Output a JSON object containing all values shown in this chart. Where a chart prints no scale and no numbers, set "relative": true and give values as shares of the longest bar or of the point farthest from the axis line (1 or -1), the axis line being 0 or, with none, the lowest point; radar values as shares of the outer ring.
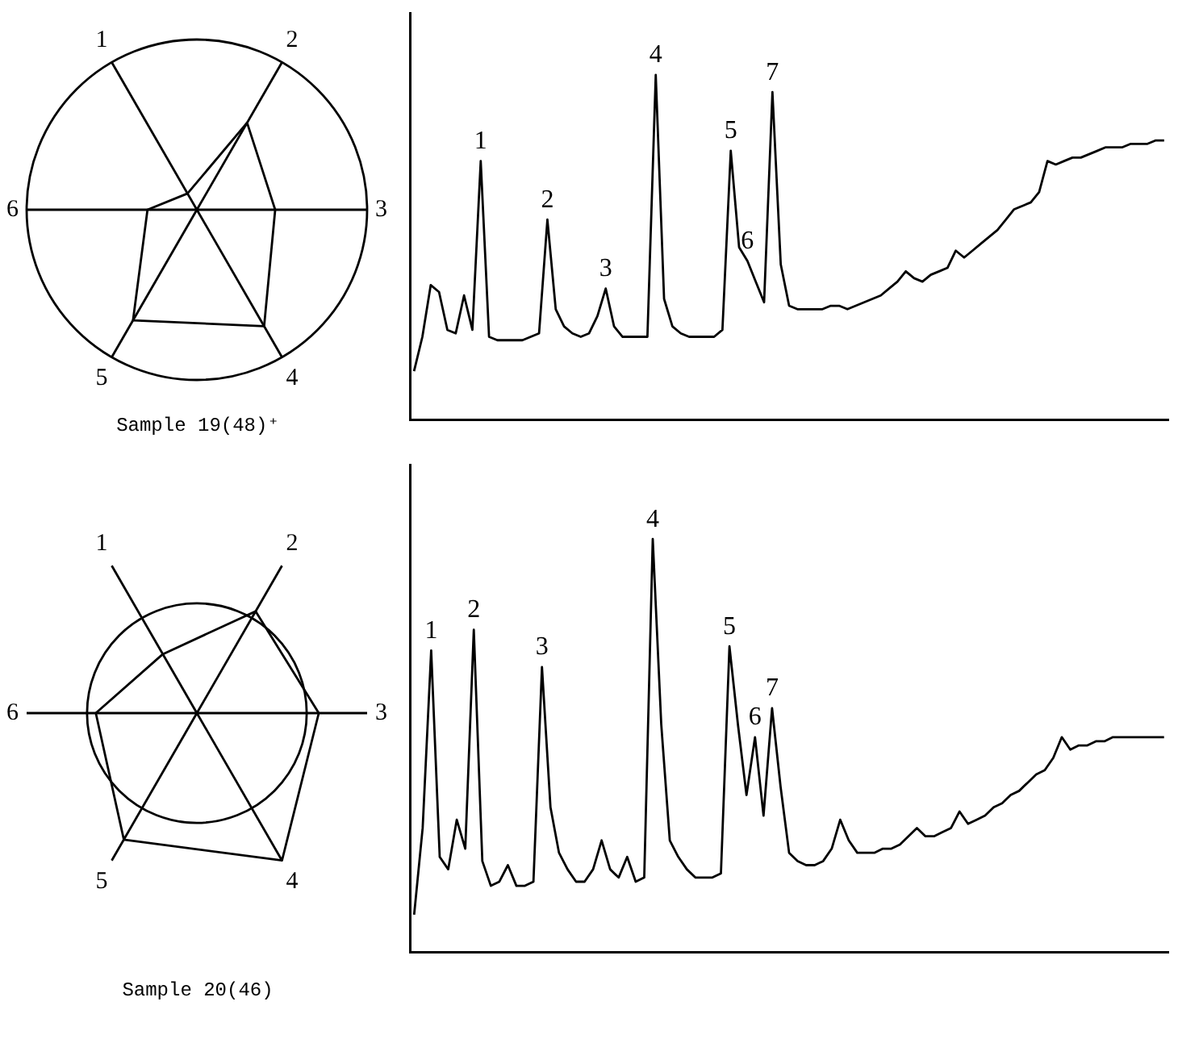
{
  "chart_data": [
    {
      "type": "radar",
      "title": "Sample 19(48)⁺",
      "categories": [
        "1",
        "2",
        "3",
        "4",
        "5",
        "6"
      ],
      "relative": true,
      "grid": true,
      "series": [
        {
          "color": "#000000",
          "values": [
            0.11,
            0.59,
            0.46,
            0.79,
            0.75,
            0.29
          ]
        }
      ]
    },
    {
      "type": "line",
      "relative": true,
      "tick_labels": false,
      "categories": [
        null,
        null,
        null,
        null,
        null,
        null,
        null,
        null,
        null,
        null,
        null,
        null,
        null,
        null,
        null,
        null,
        null,
        null,
        null,
        null,
        null,
        null,
        null,
        null,
        null,
        null,
        null,
        null,
        null,
        null,
        null,
        null,
        null,
        null,
        null,
        null,
        null,
        null,
        null,
        null,
        null,
        null,
        null,
        null,
        null,
        null,
        null,
        null,
        null,
        null,
        null,
        null,
        null,
        null,
        null,
        null,
        null,
        null,
        null,
        null,
        null,
        null,
        null,
        null,
        null,
        null,
        null,
        null,
        null,
        null,
        null,
        null,
        null,
        null,
        null,
        null,
        null,
        null,
        null,
        null,
        null,
        null,
        null,
        null,
        null,
        null,
        null,
        null,
        null,
        null,
        null
      ],
      "series": [
        {
          "color": "#000000",
          "values": [
            0.14,
            0.24,
            0.39,
            0.37,
            0.26,
            0.25,
            0.36,
            0.26,
            0.75,
            0.24,
            0.23,
            0.23,
            0.23,
            0.23,
            0.24,
            0.25,
            0.58,
            0.32,
            0.27,
            0.25,
            0.24,
            0.25,
            0.3,
            0.38,
            0.27,
            0.24,
            0.24,
            0.24,
            0.24,
            1.0,
            0.35,
            0.27,
            0.25,
            0.24,
            0.24,
            0.24,
            0.24,
            0.26,
            0.78,
            0.5,
            0.46,
            0.4,
            0.34,
            0.95,
            0.45,
            0.33,
            0.32,
            0.32,
            0.32,
            0.32,
            0.33,
            0.33,
            0.32,
            0.33,
            0.34,
            0.35,
            0.36,
            0.38,
            0.4,
            0.43,
            0.41,
            0.4,
            0.42,
            0.43,
            0.44,
            0.49,
            0.47,
            0.49,
            0.51,
            0.53,
            0.55,
            0.58,
            0.61,
            0.62,
            0.63,
            0.66,
            0.75,
            0.74,
            0.75,
            0.76,
            0.76,
            0.77,
            0.78,
            0.79,
            0.79,
            0.79,
            0.8,
            0.8,
            0.8,
            0.81,
            0.81
          ]
        }
      ],
      "annotations": [
        {
          "text": "1",
          "y": 0.75
        },
        {
          "text": "2",
          "y": 0.58
        },
        {
          "text": "3",
          "y": 0.38
        },
        {
          "text": "4",
          "y": 1.0
        },
        {
          "text": "5",
          "y": 0.78
        },
        {
          "text": "6",
          "y": 0.46
        },
        {
          "text": "7",
          "y": 0.95
        }
      ]
    },
    {
      "type": "radar",
      "title": "Sample 20(46)",
      "categories": [
        "1",
        "2",
        "3",
        "4",
        "5",
        "6"
      ],
      "relative": true,
      "grid": true,
      "series": [
        {
          "color": "#000000",
          "values": [
            0.62,
            1.07,
            1.11,
            1.55,
            1.33,
            0.92
          ]
        }
      ]
    },
    {
      "type": "line",
      "relative": true,
      "tick_labels": false,
      "categories": [
        null,
        null,
        null,
        null,
        null,
        null,
        null,
        null,
        null,
        null,
        null,
        null,
        null,
        null,
        null,
        null,
        null,
        null,
        null,
        null,
        null,
        null,
        null,
        null,
        null,
        null,
        null,
        null,
        null,
        null,
        null,
        null,
        null,
        null,
        null,
        null,
        null,
        null,
        null,
        null,
        null,
        null,
        null,
        null,
        null,
        null,
        null,
        null,
        null,
        null,
        null,
        null,
        null,
        null,
        null,
        null,
        null,
        null,
        null,
        null,
        null,
        null,
        null,
        null,
        null,
        null,
        null,
        null,
        null,
        null,
        null,
        null,
        null,
        null,
        null,
        null,
        null,
        null,
        null,
        null,
        null,
        null,
        null,
        null,
        null,
        null,
        null,
        null,
        null
      ],
      "series": [
        {
          "color": "#000000",
          "values": [
            0.09,
            0.3,
            0.73,
            0.23,
            0.2,
            0.32,
            0.25,
            0.78,
            0.22,
            0.16,
            0.17,
            0.21,
            0.16,
            0.16,
            0.17,
            0.69,
            0.35,
            0.24,
            0.2,
            0.17,
            0.17,
            0.2,
            0.27,
            0.2,
            0.18,
            0.23,
            0.17,
            0.18,
            1.0,
            0.55,
            0.27,
            0.23,
            0.2,
            0.18,
            0.18,
            0.18,
            0.19,
            0.74,
            0.55,
            0.38,
            0.52,
            0.33,
            0.59,
            0.4,
            0.24,
            0.22,
            0.21,
            0.21,
            0.22,
            0.25,
            0.32,
            0.27,
            0.24,
            0.24,
            0.24,
            0.25,
            0.25,
            0.26,
            0.28,
            0.3,
            0.28,
            0.28,
            0.29,
            0.3,
            0.34,
            0.31,
            0.32,
            0.33,
            0.35,
            0.36,
            0.38,
            0.39,
            0.41,
            0.43,
            0.44,
            0.47,
            0.52,
            0.49,
            0.5,
            0.5,
            0.51,
            0.51,
            0.52,
            0.52,
            0.52,
            0.52,
            0.52,
            0.52,
            0.52
          ]
        }
      ],
      "annotations": [
        {
          "text": "1",
          "y": 0.73
        },
        {
          "text": "2",
          "y": 0.78
        },
        {
          "text": "3",
          "y": 0.69
        },
        {
          "text": "4",
          "y": 1.0
        },
        {
          "text": "5",
          "y": 0.74
        },
        {
          "text": "6",
          "y": 0.52
        },
        {
          "text": "7",
          "y": 0.59
        }
      ]
    }
  ]
}
